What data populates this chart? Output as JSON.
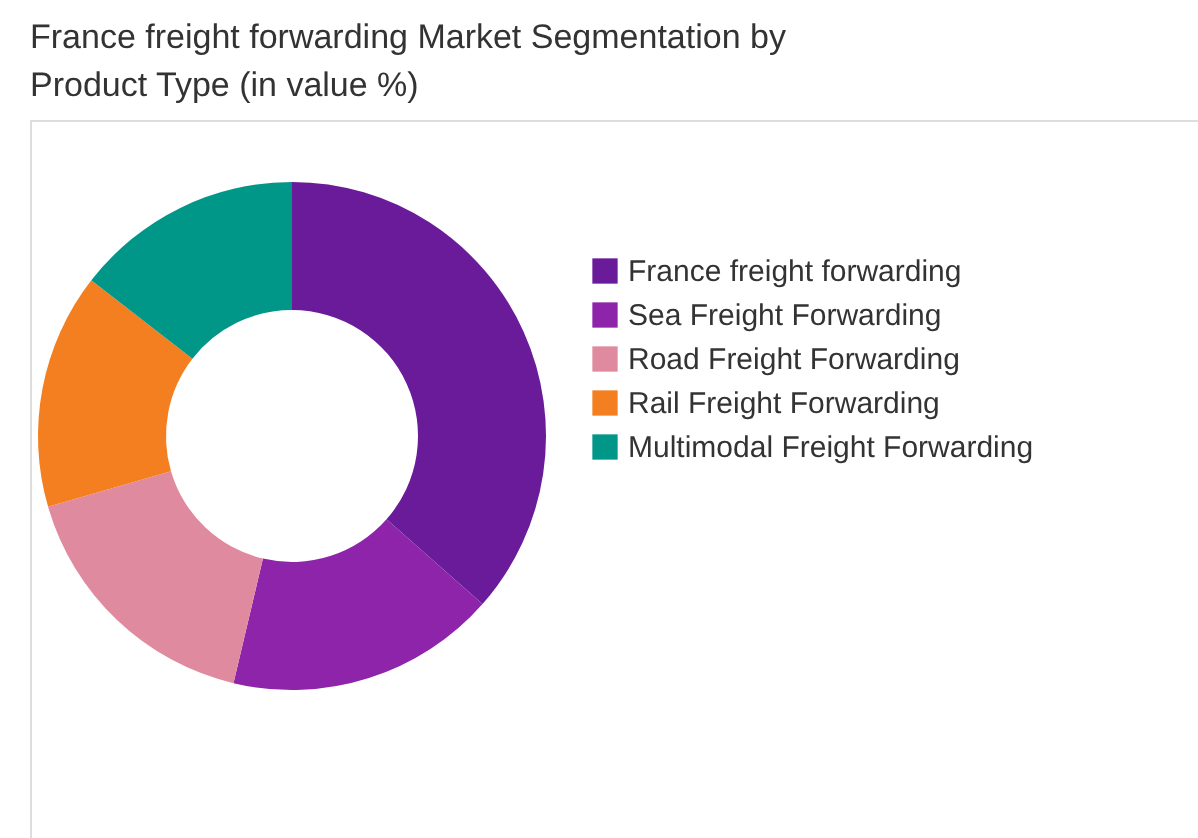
{
  "chart_data": {
    "type": "donut",
    "title": "France freight forwarding Market Segmentation by Product Type (in value %)",
    "categories": [
      "France freight forwarding",
      "Sea Freight Forwarding",
      "Road Freight Forwarding",
      "Rail Freight Forwarding",
      "Multimodal Freight Forwarding"
    ],
    "values": [
      36.5,
      17.2,
      16.8,
      15,
      14.5
    ],
    "colors": [
      "#6a1b9a",
      "#8e24aa",
      "#e08aa0",
      "#f47f20",
      "#009688"
    ],
    "legend": "right"
  }
}
